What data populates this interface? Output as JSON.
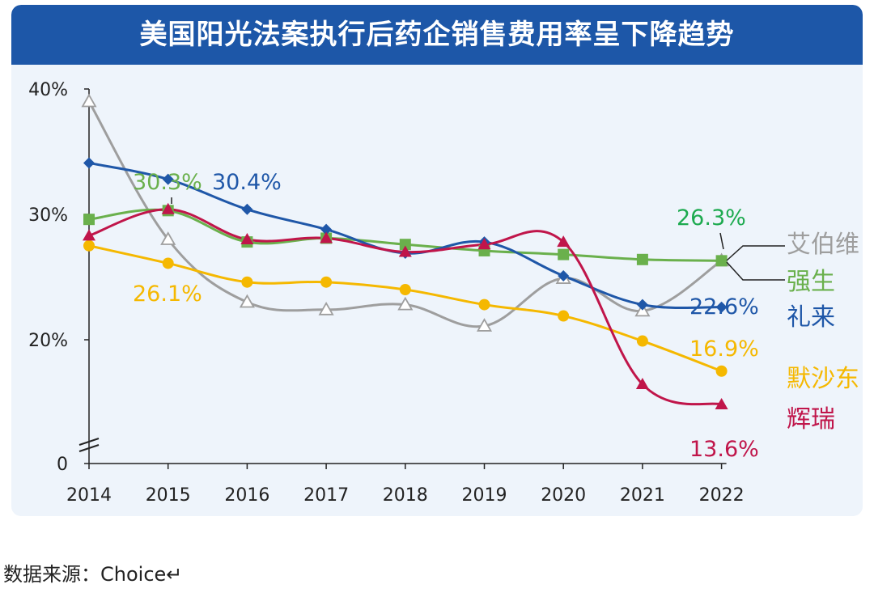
{
  "source_text": "数据来源：Choice↵",
  "chart_data": {
    "type": "line",
    "title": "美国阳光法案执行后药企销售费用率呈下降趋势",
    "xlabel": "",
    "ylabel": "",
    "x": [
      "2014",
      "2015",
      "2016",
      "2017",
      "2018",
      "2019",
      "2020",
      "2021",
      "2022"
    ],
    "y_ticks": [
      "40%",
      "30%",
      "20%",
      "0"
    ],
    "y_axis_break": true,
    "grid": false,
    "series": [
      {
        "name": "艾伯维",
        "color": "#9e9e9e",
        "marker": "open-triangle",
        "values": [
          39.0,
          28.0,
          23.0,
          22.4,
          22.8,
          21.1,
          24.9,
          22.3,
          26.3
        ]
      },
      {
        "name": "强生",
        "color": "#6ab04c",
        "marker": "square",
        "values": [
          29.6,
          30.3,
          27.8,
          28.1,
          27.6,
          27.1,
          26.8,
          26.4,
          26.3
        ]
      },
      {
        "name": "礼来",
        "color": "#1f57a8",
        "marker": "diamond",
        "values": [
          34.1,
          32.8,
          30.4,
          28.8,
          26.9,
          27.8,
          25.1,
          22.8,
          22.6
        ]
      },
      {
        "name": "默沙东",
        "color": "#f5b800",
        "marker": "circle",
        "values": [
          27.5,
          26.1,
          24.6,
          24.6,
          24.0,
          22.8,
          21.9,
          19.9,
          16.9
        ]
      },
      {
        "name": "辉瑞",
        "color": "#c0154a",
        "marker": "triangle",
        "values": [
          28.3,
          30.4,
          28.0,
          28.1,
          27.0,
          27.6,
          27.8,
          15.6,
          13.6
        ]
      }
    ],
    "annotations": [
      {
        "text": "30.3%",
        "series": "强生",
        "color": "#6ab04c"
      },
      {
        "text": "30.4%",
        "series": "礼来",
        "color": "#1f57a8"
      },
      {
        "text": "26.1%",
        "series": "默沙东",
        "color": "#f5b800"
      },
      {
        "text": "26.3%",
        "series": "强生",
        "color": "#1daa4f"
      },
      {
        "text": "22.6%",
        "series": "礼来",
        "color": "#1f57a8"
      },
      {
        "text": "16.9%",
        "series": "默沙东",
        "color": "#f5b800"
      },
      {
        "text": "13.6%",
        "series": "辉瑞",
        "color": "#c0154a"
      }
    ]
  }
}
